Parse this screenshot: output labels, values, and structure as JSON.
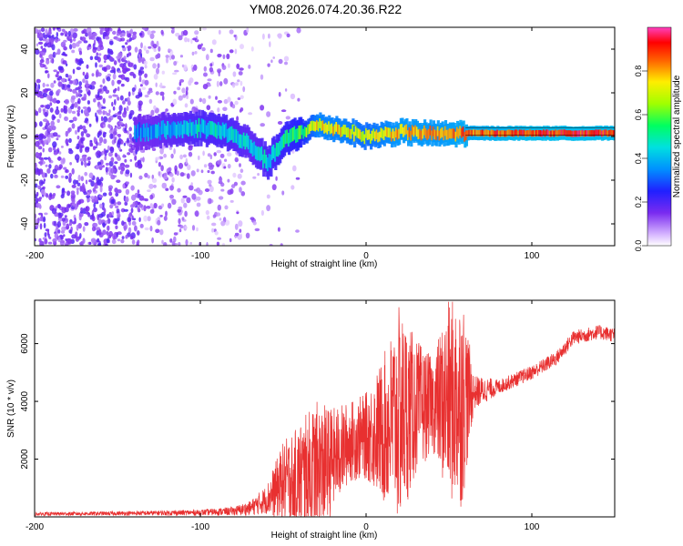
{
  "title": "YM08.2026.074.20.36.R22",
  "chart_data": [
    {
      "type": "heatmap",
      "title": "YM08.2026.074.20.36.R22",
      "xlabel": "Height of straight line (km)",
      "ylabel": "Frequency (Hz)",
      "xlim": [
        -200,
        150
      ],
      "ylim": [
        -50,
        50
      ],
      "x_ticks": [
        -200,
        -100,
        0,
        100
      ],
      "x_tick_labels": [
        "-200",
        "-100",
        "0",
        "100"
      ],
      "y_ticks": [
        -40,
        -20,
        0,
        20,
        40
      ],
      "y_tick_labels": [
        "-40",
        "-20",
        "0",
        "20",
        "40"
      ],
      "colorbar": {
        "label": "Normalized spectral amplitude",
        "range": [
          0,
          1
        ],
        "ticks": [
          0.0,
          0.2,
          0.4,
          0.6,
          0.8
        ],
        "tick_labels": [
          "0.0",
          "0.2",
          "0.4",
          "0.6",
          "0.8"
        ],
        "colormap": "rainbow (white-purple-blue-cyan-green-yellow-red-magenta)"
      },
      "noise_region_x": [
        -200,
        -75
      ],
      "signal_track": [
        {
          "x": -135,
          "freq": 2,
          "amp": 0.35
        },
        {
          "x": -120,
          "freq": 3,
          "amp": 0.4
        },
        {
          "x": -100,
          "freq": 4,
          "amp": 0.45
        },
        {
          "x": -85,
          "freq": 2,
          "amp": 0.45
        },
        {
          "x": -70,
          "freq": -4,
          "amp": 0.4
        },
        {
          "x": -60,
          "freq": -12,
          "amp": 0.45
        },
        {
          "x": -50,
          "freq": -2,
          "amp": 0.5
        },
        {
          "x": -40,
          "freq": 2,
          "amp": 0.55
        },
        {
          "x": -30,
          "freq": 5,
          "amp": 0.75
        },
        {
          "x": -15,
          "freq": 3,
          "amp": 0.75
        },
        {
          "x": 0,
          "freq": 0,
          "amp": 0.7
        },
        {
          "x": 20,
          "freq": 2,
          "amp": 0.8
        },
        {
          "x": 45,
          "freq": 1,
          "amp": 0.8
        },
        {
          "x": 60,
          "freq": 1.5,
          "amp": 0.85
        },
        {
          "x": 100,
          "freq": 1.5,
          "amp": 0.9
        },
        {
          "x": 150,
          "freq": 1.5,
          "amp": 0.9
        }
      ]
    },
    {
      "type": "line",
      "xlabel": "Height of straight line (km)",
      "ylabel": "SNR (10 * v/v)",
      "xlim": [
        -200,
        150
      ],
      "ylim": [
        0,
        7500
      ],
      "x_ticks": [
        -200,
        -100,
        0,
        100
      ],
      "x_tick_labels": [
        "-200",
        "-100",
        "0",
        "100"
      ],
      "y_ticks": [
        2000,
        4000,
        6000
      ],
      "y_tick_labels": [
        "2000",
        "4000",
        "6000"
      ],
      "series": [
        {
          "name": "SNR",
          "color": "#e83030",
          "envelope": [
            {
              "x": -200,
              "mean": 100,
              "amp": 60
            },
            {
              "x": -150,
              "mean": 120,
              "amp": 70
            },
            {
              "x": -100,
              "mean": 150,
              "amp": 100
            },
            {
              "x": -80,
              "mean": 200,
              "amp": 150
            },
            {
              "x": -70,
              "mean": 300,
              "amp": 250
            },
            {
              "x": -60,
              "mean": 600,
              "amp": 500
            },
            {
              "x": -50,
              "mean": 1200,
              "amp": 1400
            },
            {
              "x": -30,
              "mean": 1500,
              "amp": 2500
            },
            {
              "x": -20,
              "mean": 2000,
              "amp": 1800
            },
            {
              "x": -10,
              "mean": 2600,
              "amp": 1400
            },
            {
              "x": 0,
              "mean": 2800,
              "amp": 1500
            },
            {
              "x": 10,
              "mean": 3000,
              "amp": 2500
            },
            {
              "x": 20,
              "mean": 3500,
              "amp": 3800
            },
            {
              "x": 30,
              "mean": 3800,
              "amp": 2400
            },
            {
              "x": 40,
              "mean": 3900,
              "amp": 1600
            },
            {
              "x": 50,
              "mean": 4000,
              "amp": 3500
            },
            {
              "x": 58,
              "mean": 4100,
              "amp": 3800
            },
            {
              "x": 65,
              "mean": 4300,
              "amp": 600
            },
            {
              "x": 80,
              "mean": 4500,
              "amp": 250
            },
            {
              "x": 100,
              "mean": 5000,
              "amp": 250
            },
            {
              "x": 115,
              "mean": 5500,
              "amp": 250
            },
            {
              "x": 125,
              "mean": 6200,
              "amp": 250
            },
            {
              "x": 140,
              "mean": 6400,
              "amp": 250
            },
            {
              "x": 150,
              "mean": 6300,
              "amp": 250
            }
          ]
        }
      ]
    }
  ]
}
